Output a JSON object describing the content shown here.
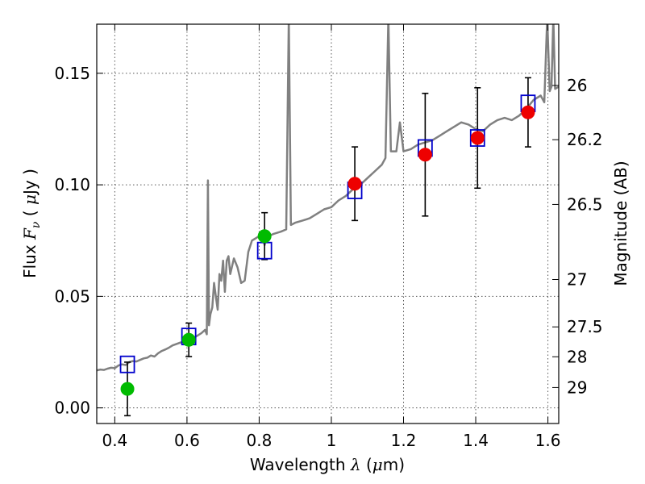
{
  "chart_data": {
    "type": "scatter",
    "xlabel": {
      "prefix": "Wavelength  ",
      "symbol": "λ",
      "suffix": " (",
      "mu": "μ",
      "unit": "m)"
    },
    "ylabel": {
      "prefix": "Flux  ",
      "symbol": "F",
      "subscript": "ν",
      "middle": "  ( ",
      "mu": "μ",
      "unit": "Jy )"
    },
    "y2label": "Magnitude (AB)",
    "xlim": [
      0.35,
      1.63
    ],
    "ylim": [
      -0.007,
      0.172
    ],
    "grid": true,
    "xticks": [
      {
        "value": 0.4,
        "label": "0.4"
      },
      {
        "value": 0.6,
        "label": "0.6"
      },
      {
        "value": 0.8,
        "label": "0.8"
      },
      {
        "value": 1.0,
        "label": "1"
      },
      {
        "value": 1.2,
        "label": "1.2"
      },
      {
        "value": 1.4,
        "label": "1.4"
      },
      {
        "value": 1.6,
        "label": "1.6"
      }
    ],
    "yticks": [
      {
        "value": 0.0,
        "label": "0.00"
      },
      {
        "value": 0.05,
        "label": "0.05"
      },
      {
        "value": 0.1,
        "label": "0.10"
      },
      {
        "value": 0.15,
        "label": "0.15"
      }
    ],
    "magticks": [
      {
        "mag": 26,
        "label": "26"
      },
      {
        "mag": 26.2,
        "label": "26.2"
      },
      {
        "mag": 26.5,
        "label": "26.5"
      },
      {
        "mag": 27,
        "label": "27"
      },
      {
        "mag": 27.5,
        "label": "27.5"
      },
      {
        "mag": 28,
        "label": "28"
      },
      {
        "mag": 29,
        "label": "29"
      }
    ],
    "colors": {
      "spectrum": "#808080",
      "optical": "#00bb00",
      "nir": "#ee0000",
      "model": "#0000cc",
      "errorbar": "#000000",
      "grid": "#555555"
    },
    "spectrum": [
      [
        0.35,
        0.0168
      ],
      [
        0.36,
        0.0172
      ],
      [
        0.37,
        0.017
      ],
      [
        0.38,
        0.0176
      ],
      [
        0.39,
        0.018
      ],
      [
        0.4,
        0.0178
      ],
      [
        0.41,
        0.019
      ],
      [
        0.42,
        0.0195
      ],
      [
        0.43,
        0.0192
      ],
      [
        0.44,
        0.0205
      ],
      [
        0.45,
        0.021
      ],
      [
        0.46,
        0.0208
      ],
      [
        0.47,
        0.0215
      ],
      [
        0.48,
        0.0222
      ],
      [
        0.49,
        0.0225
      ],
      [
        0.5,
        0.0235
      ],
      [
        0.51,
        0.023
      ],
      [
        0.52,
        0.0245
      ],
      [
        0.53,
        0.0255
      ],
      [
        0.54,
        0.0262
      ],
      [
        0.55,
        0.027
      ],
      [
        0.56,
        0.028
      ],
      [
        0.57,
        0.0286
      ],
      [
        0.58,
        0.0292
      ],
      [
        0.59,
        0.0296
      ],
      [
        0.6,
        0.03
      ],
      [
        0.61,
        0.0305
      ],
      [
        0.62,
        0.0315
      ],
      [
        0.63,
        0.0325
      ],
      [
        0.64,
        0.0335
      ],
      [
        0.65,
        0.035
      ],
      [
        0.655,
        0.033
      ],
      [
        0.658,
        0.102
      ],
      [
        0.661,
        0.037
      ],
      [
        0.665,
        0.042
      ],
      [
        0.67,
        0.045
      ],
      [
        0.675,
        0.056
      ],
      [
        0.68,
        0.05
      ],
      [
        0.685,
        0.044
      ],
      [
        0.69,
        0.06
      ],
      [
        0.695,
        0.057
      ],
      [
        0.7,
        0.066
      ],
      [
        0.705,
        0.052
      ],
      [
        0.71,
        0.066
      ],
      [
        0.715,
        0.068
      ],
      [
        0.72,
        0.06
      ],
      [
        0.73,
        0.067
      ],
      [
        0.74,
        0.063
      ],
      [
        0.75,
        0.056
      ],
      [
        0.76,
        0.057
      ],
      [
        0.77,
        0.07
      ],
      [
        0.78,
        0.075
      ],
      [
        0.79,
        0.076
      ],
      [
        0.8,
        0.077
      ],
      [
        0.81,
        0.076
      ],
      [
        0.815,
        0.073
      ],
      [
        0.82,
        0.0765
      ],
      [
        0.84,
        0.078
      ],
      [
        0.86,
        0.079
      ],
      [
        0.875,
        0.08
      ],
      [
        0.882,
        0.175
      ],
      [
        0.888,
        0.082
      ],
      [
        0.9,
        0.083
      ],
      [
        0.92,
        0.084
      ],
      [
        0.94,
        0.085
      ],
      [
        0.96,
        0.087
      ],
      [
        0.98,
        0.089
      ],
      [
        1.0,
        0.09
      ],
      [
        1.02,
        0.093
      ],
      [
        1.04,
        0.095
      ],
      [
        1.06,
        0.098
      ],
      [
        1.08,
        0.1
      ],
      [
        1.1,
        0.103
      ],
      [
        1.12,
        0.106
      ],
      [
        1.14,
        0.109
      ],
      [
        1.15,
        0.112
      ],
      [
        1.158,
        0.175
      ],
      [
        1.165,
        0.115
      ],
      [
        1.18,
        0.115
      ],
      [
        1.19,
        0.128
      ],
      [
        1.2,
        0.115
      ],
      [
        1.22,
        0.116
      ],
      [
        1.24,
        0.118
      ],
      [
        1.26,
        0.119
      ],
      [
        1.28,
        0.12
      ],
      [
        1.3,
        0.122
      ],
      [
        1.32,
        0.124
      ],
      [
        1.34,
        0.126
      ],
      [
        1.36,
        0.128
      ],
      [
        1.38,
        0.127
      ],
      [
        1.4,
        0.125
      ],
      [
        1.42,
        0.124
      ],
      [
        1.44,
        0.127
      ],
      [
        1.46,
        0.129
      ],
      [
        1.48,
        0.13
      ],
      [
        1.5,
        0.129
      ],
      [
        1.52,
        0.131
      ],
      [
        1.54,
        0.134
      ],
      [
        1.56,
        0.138
      ],
      [
        1.58,
        0.14
      ],
      [
        1.59,
        0.137
      ],
      [
        1.598,
        0.175
      ],
      [
        1.605,
        0.142
      ],
      [
        1.61,
        0.144
      ],
      [
        1.615,
        0.175
      ],
      [
        1.62,
        0.143
      ],
      [
        1.63,
        0.144
      ]
    ],
    "optical_points": [
      {
        "x": 0.435,
        "y": 0.0085,
        "err": 0.012
      },
      {
        "x": 0.605,
        "y": 0.0305,
        "err": 0.0075
      },
      {
        "x": 0.815,
        "y": 0.077,
        "err": 0.0105
      }
    ],
    "nir_points": [
      {
        "x": 1.065,
        "y": 0.1005,
        "err": 0.0165
      },
      {
        "x": 1.26,
        "y": 0.1135,
        "err": 0.0275
      },
      {
        "x": 1.405,
        "y": 0.121,
        "err": 0.0225
      },
      {
        "x": 1.545,
        "y": 0.1325,
        "err": 0.0155
      }
    ],
    "model_points": [
      {
        "x": 0.435,
        "y": 0.0195
      },
      {
        "x": 0.605,
        "y": 0.032
      },
      {
        "x": 0.815,
        "y": 0.0705
      },
      {
        "x": 1.065,
        "y": 0.0975
      },
      {
        "x": 1.26,
        "y": 0.1165
      },
      {
        "x": 1.405,
        "y": 0.121
      },
      {
        "x": 1.545,
        "y": 0.1365
      }
    ]
  }
}
